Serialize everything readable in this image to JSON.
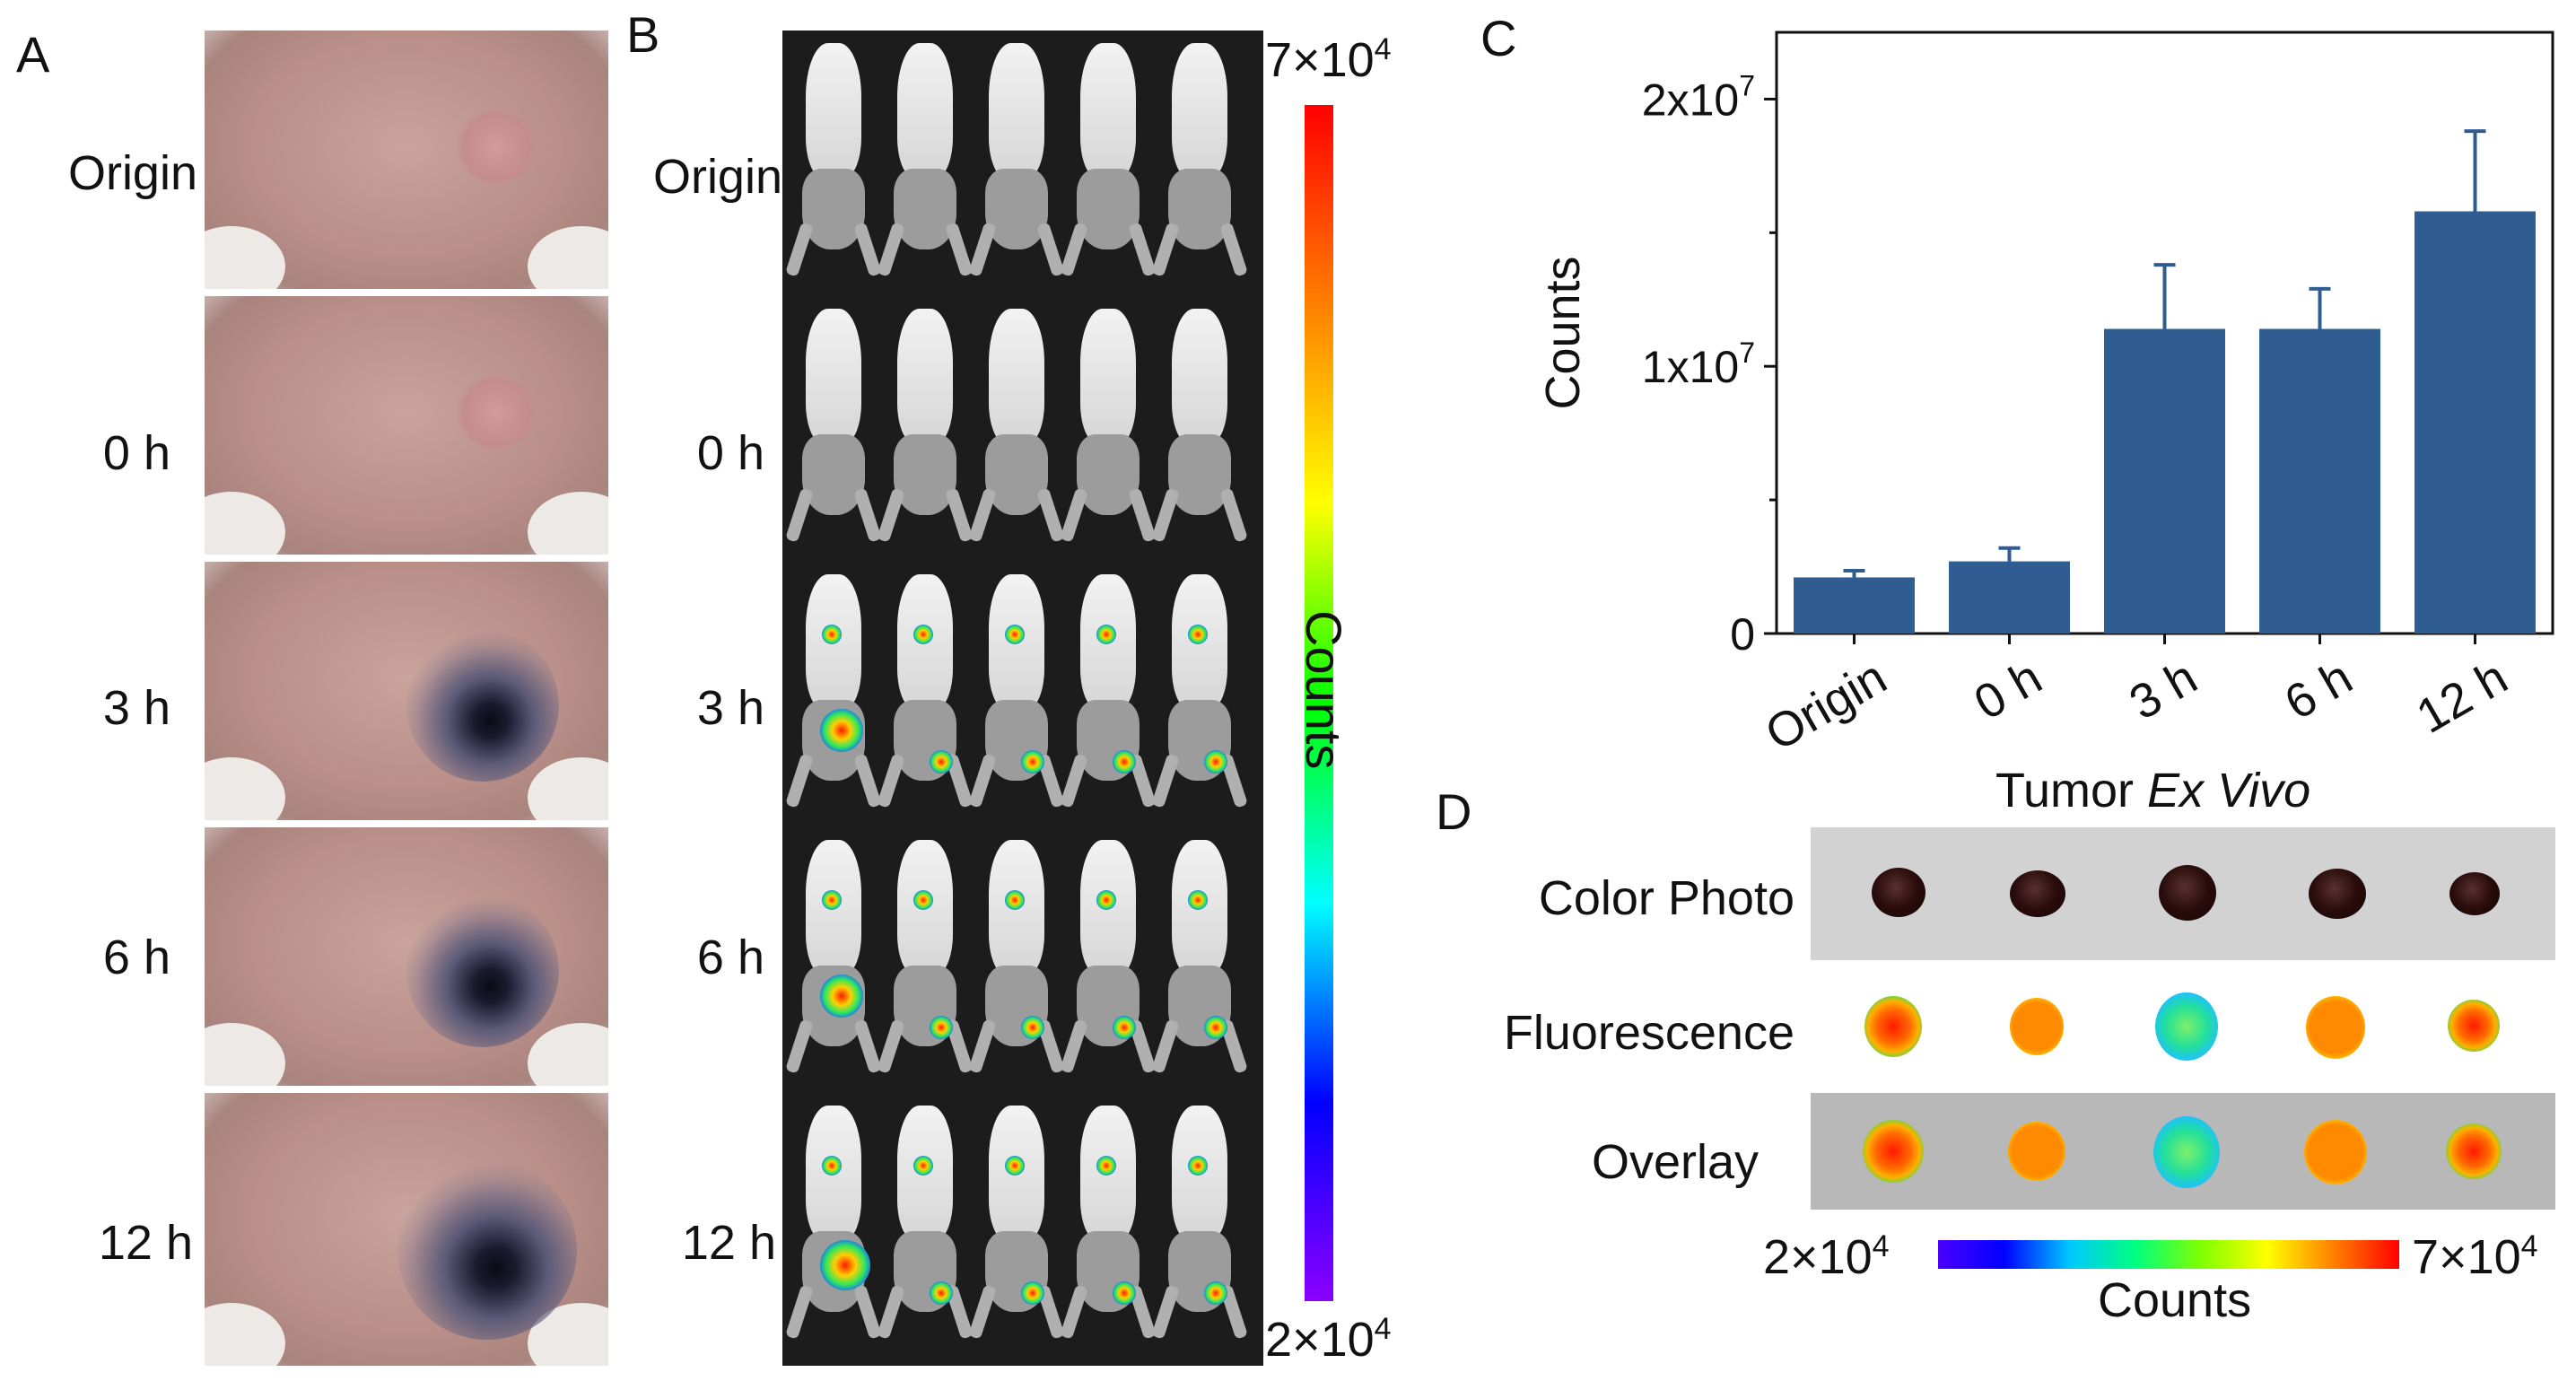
{
  "panels": {
    "a": {
      "letter": "A",
      "rows": [
        "Origin",
        "0 h",
        "3 h",
        "6 h",
        "12 h"
      ]
    },
    "b": {
      "letter": "B",
      "rows": [
        "Origin",
        "0 h",
        "3 h",
        "6 h",
        "12 h"
      ],
      "colorbar": {
        "max_label": "7×10",
        "max_exp": "4",
        "min_label": "2×10",
        "min_exp": "4",
        "title": "Counts"
      }
    },
    "c": {
      "letter": "C"
    },
    "d": {
      "letter": "D",
      "title_plain": "Tumor ",
      "title_italic": "Ex Vivo",
      "rows": [
        "Color Photo",
        "Fluorescence",
        "Overlay"
      ],
      "colorbar": {
        "min_label": "2×10",
        "min_exp": "4",
        "max_label": "7×10",
        "max_exp": "4",
        "title": "Counts"
      }
    }
  },
  "colors": {
    "bar": "#2f5d92",
    "axis": "#111111"
  },
  "chart_data": {
    "type": "bar",
    "title": "",
    "xlabel": "",
    "ylabel": "Counts",
    "categories": [
      "Origin",
      "0 h",
      "3 h",
      "6 h",
      "12 h"
    ],
    "values": [
      2100000,
      2700000,
      11400000,
      11400000,
      15800000
    ],
    "errors": [
      250000,
      500000,
      2400000,
      1500000,
      3000000
    ],
    "ylim": [
      0,
      22500000
    ],
    "yticks": [
      {
        "value": 0,
        "label": "0",
        "exp": ""
      },
      {
        "value": 10000000,
        "label": "1x10",
        "exp": "7"
      },
      {
        "value": 20000000,
        "label": "2x10",
        "exp": "7"
      }
    ]
  }
}
